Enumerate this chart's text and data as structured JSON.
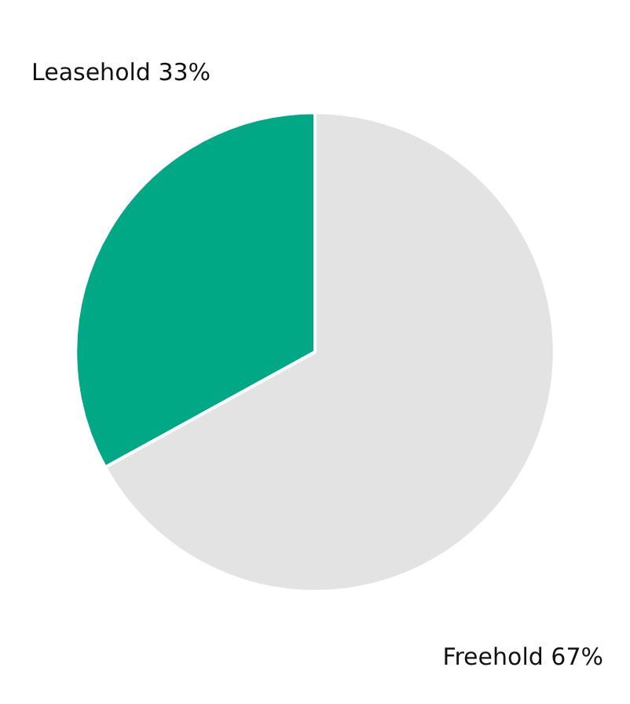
{
  "chart_data": {
    "type": "pie",
    "categories": [
      "Leasehold",
      "Freehold"
    ],
    "values": [
      33,
      67
    ],
    "colors": [
      "#00a886",
      "#e3e3e3"
    ],
    "legend": false,
    "value_labels": [
      "33%",
      "67%"
    ]
  }
}
